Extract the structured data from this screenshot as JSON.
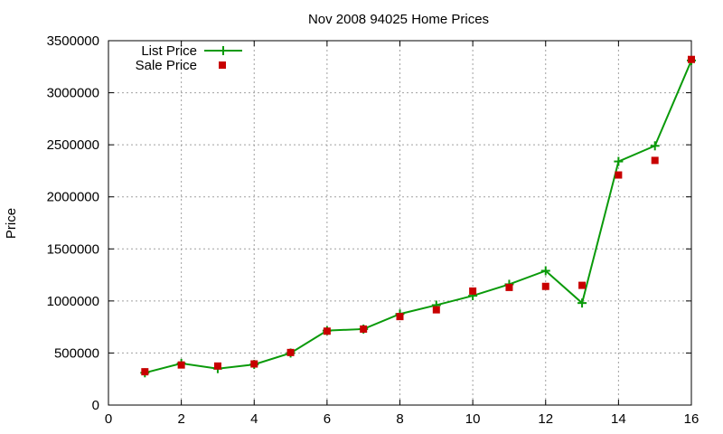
{
  "chart_data": {
    "type": "line",
    "title": "Nov 2008 94025 Home Prices",
    "xlabel": "",
    "ylabel": "Price",
    "xlim": [
      0,
      16
    ],
    "ylim": [
      0,
      3500000
    ],
    "xticks": [
      0,
      2,
      4,
      6,
      8,
      10,
      12,
      14,
      16
    ],
    "yticks": [
      0,
      500000,
      1000000,
      1500000,
      2000000,
      2500000,
      3000000,
      3500000
    ],
    "grid": true,
    "legend_position": "top-left",
    "series": [
      {
        "name": "List Price",
        "style": "lines+plus-markers",
        "color": "#0a9a0a",
        "x": [
          1,
          2,
          3,
          4,
          5,
          6,
          7,
          8,
          9,
          10,
          11,
          12,
          13,
          14,
          15,
          16
        ],
        "y": [
          310000,
          400000,
          350000,
          390000,
          500000,
          715000,
          730000,
          875000,
          960000,
          1050000,
          1160000,
          1290000,
          980000,
          2340000,
          2490000,
          3310000
        ]
      },
      {
        "name": "Sale Price",
        "style": "square-markers",
        "color": "#c80000",
        "x": [
          1,
          2,
          3,
          4,
          5,
          6,
          7,
          8,
          9,
          10,
          11,
          12,
          13,
          14,
          15,
          16
        ],
        "y": [
          320000,
          385000,
          375000,
          395000,
          505000,
          710000,
          730000,
          850000,
          915000,
          1095000,
          1130000,
          1140000,
          1150000,
          2210000,
          2350000,
          3320000
        ]
      }
    ]
  }
}
